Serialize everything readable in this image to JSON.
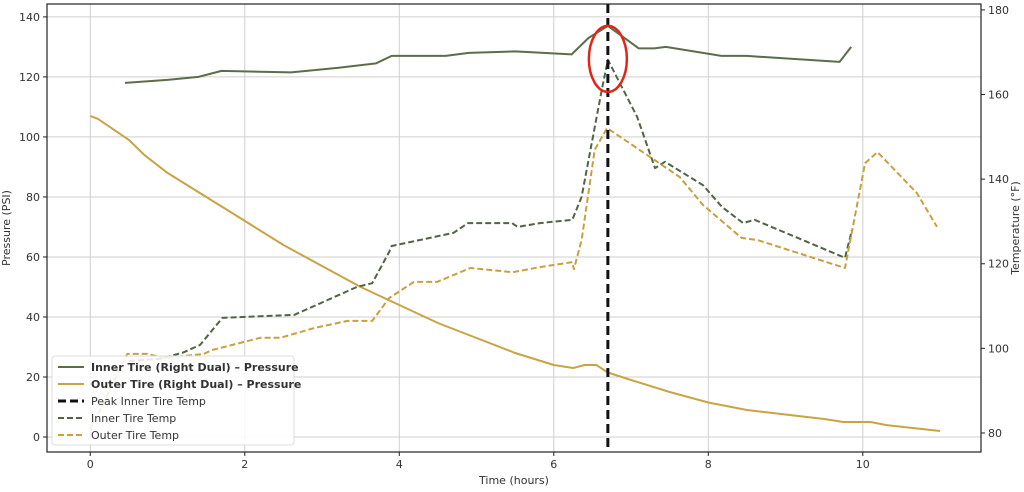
{
  "chart_data": {
    "type": "line",
    "title": "",
    "xlabel": "Time (hours)",
    "ylabel_left": "Pressure (PSI)",
    "ylabel_right": "Temperature (°F)",
    "xlim": [
      -0.56,
      11.53
    ],
    "ylim_left": [
      -5,
      144.3
    ],
    "ylim_right": [
      75.5,
      181.4
    ],
    "xticks": [
      0,
      2,
      4,
      6,
      8,
      10
    ],
    "yticks_left": [
      0,
      20,
      40,
      60,
      80,
      100,
      120,
      140
    ],
    "yticks_right": [
      80,
      100,
      120,
      140,
      160,
      180
    ],
    "grid": true,
    "legend_placement": "lower-left",
    "series": [
      {
        "name": "Inner Tire (Right Dual) – Pressure",
        "axis": "left",
        "style": "solid",
        "color": "#5b6e4a",
        "bold_legend": true,
        "x": [
          0.45,
          1.0,
          1.4,
          1.7,
          2.6,
          3.2,
          3.7,
          3.9,
          4.6,
          4.9,
          5.5,
          6.23,
          6.45,
          6.7,
          7.1,
          7.3,
          7.45,
          8.17,
          8.5,
          9.7,
          9.85
        ],
        "y": [
          118,
          119,
          120,
          122,
          121.5,
          123,
          124.5,
          127,
          127,
          128,
          128.5,
          127.5,
          133,
          137,
          129.5,
          129.5,
          130,
          127,
          127,
          125,
          130
        ]
      },
      {
        "name": "Outer Tire (Right Dual) – Pressure",
        "axis": "left",
        "style": "solid",
        "color": "#c9a444",
        "bold_legend": true,
        "x": [
          0,
          0.1,
          0.5,
          0.7,
          1,
          1.5,
          2,
          2.5,
          3,
          3.5,
          4,
          4.5,
          5,
          5.5,
          6,
          6.25,
          6.4,
          6.55,
          6.7,
          7,
          7.5,
          8,
          8.5,
          9,
          9.5,
          9.75,
          10.1,
          10.3,
          11
        ],
        "y": [
          107,
          106,
          99,
          94,
          88,
          80,
          72,
          64,
          57,
          50,
          44,
          38,
          33,
          28,
          24,
          23,
          24,
          24,
          21.5,
          19,
          15,
          11.5,
          9,
          7.5,
          6,
          5,
          5,
          4,
          2
        ]
      },
      {
        "name": "Peak Inner Tire Temp",
        "axis": "left",
        "style": "vline",
        "color": "#111111",
        "bold_legend": false,
        "x": [
          6.7
        ]
      },
      {
        "name": "Inner Tire Temp",
        "axis": "right",
        "style": "dashed",
        "color": "#4f6645",
        "bold_legend": false,
        "x": [
          0.5,
          0.9,
          1.2,
          1.42,
          1.71,
          2.64,
          3.45,
          3.65,
          3.87,
          3.9,
          4.7,
          4.89,
          5.46,
          5.53,
          5.82,
          6.24,
          6.36,
          6.62,
          6.7,
          7.08,
          7.31,
          7.44,
          7.93,
          8.18,
          8.45,
          8.6,
          9.77,
          9.86
        ],
        "y": [
          97,
          97.5,
          99,
          100.8,
          107.2,
          107.9,
          114.5,
          115.4,
          122.8,
          124.2,
          127.3,
          129.6,
          129.6,
          128.7,
          129.6,
          130.4,
          135.8,
          161,
          168.2,
          154.7,
          142.6,
          144.1,
          138.6,
          133.4,
          129.6,
          130.4,
          121.4,
          128
        ]
      },
      {
        "name": "Outer Tire Temp",
        "axis": "right",
        "style": "dashed",
        "color": "#c9a040",
        "bold_legend": false,
        "x": [
          0,
          0.48,
          0.74,
          0.96,
          1.47,
          1.58,
          2.2,
          2.46,
          2.9,
          3.33,
          3.65,
          3.87,
          4.19,
          4.49,
          4.92,
          5.47,
          5.82,
          6.24,
          6.26,
          6.36,
          6.53,
          6.69,
          7.63,
          7.93,
          8.43,
          8.64,
          9.77,
          10.03,
          10.19,
          10.7,
          10.96
        ],
        "y": [
          80.7,
          98.7,
          98.7,
          97.7,
          98.7,
          99.6,
          102.5,
          102.5,
          104.8,
          106.5,
          106.5,
          111.9,
          115.7,
          115.7,
          119,
          118,
          119.2,
          120.4,
          118.7,
          125.6,
          146.9,
          152.1,
          140.5,
          133.9,
          126.1,
          125.6,
          119,
          143.8,
          146.4,
          136.7,
          128.7
        ]
      }
    ],
    "annotations": [
      {
        "type": "ellipse-highlight",
        "color": "#e0261b",
        "x": 6.7,
        "y": 126,
        "axis": "left"
      }
    ]
  }
}
